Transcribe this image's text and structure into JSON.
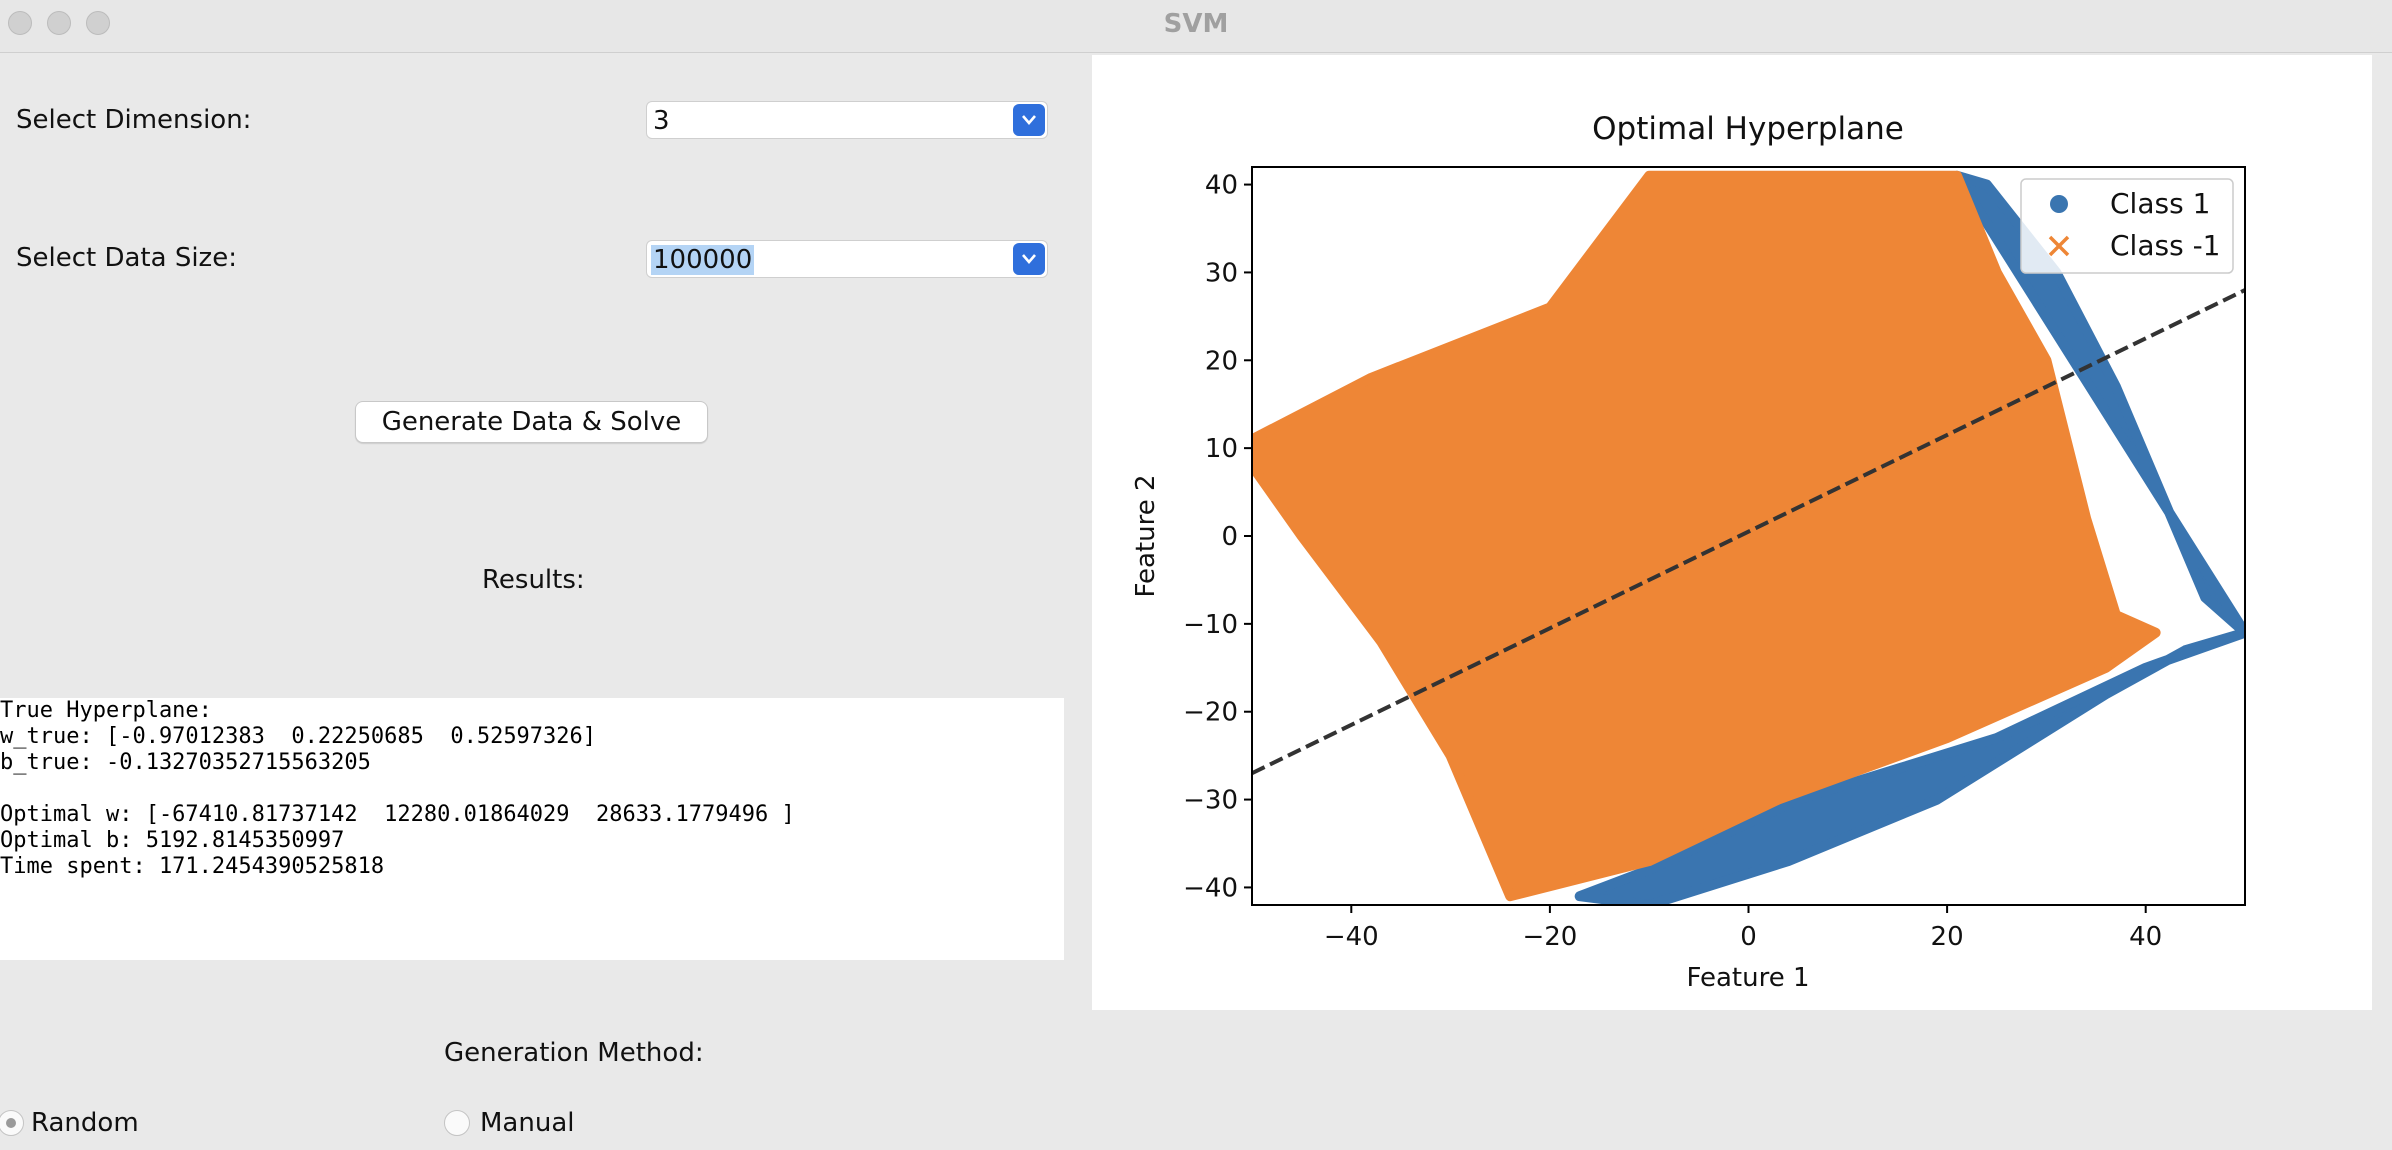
{
  "window": {
    "title": "SVM"
  },
  "controls": {
    "dimension_label": "Select Dimension:",
    "dimension_value": "3",
    "datasize_label": "Select Data Size:",
    "datasize_value": "100000",
    "generate_button": "Generate Data & Solve",
    "results_label": "Results:"
  },
  "results": {
    "lines": [
      "True Hyperplane:",
      "w_true: [-0.97012383  0.22250685  0.52597326]",
      "b_true: -0.13270352715563205",
      "",
      "Optimal w: [-67410.81737142  12280.01864029  28633.1779496 ]",
      "Optimal b: 5192.8145350997",
      "Time spent: 171.2454390525818"
    ]
  },
  "generation": {
    "label": "Generation Method:",
    "options": [
      "Random",
      "Manual"
    ],
    "selected": "Random"
  },
  "chart_data": {
    "type": "scatter",
    "title": "Optimal Hyperplane",
    "xlabel": "Feature 1",
    "ylabel": "Feature 2",
    "xlim": [
      -50,
      50
    ],
    "ylim": [
      -42,
      42
    ],
    "xticks": [
      -40,
      -20,
      0,
      20,
      40
    ],
    "yticks": [
      -40,
      -30,
      -20,
      -10,
      0,
      10,
      20,
      30,
      40
    ],
    "legend_position": "top-right",
    "series": [
      {
        "name": "Class 1",
        "marker": "circle",
        "color": "#3a75b0",
        "region": [
          [
            21,
            41
          ],
          [
            24,
            40
          ],
          [
            31,
            30
          ],
          [
            37,
            17
          ],
          [
            46,
            -7
          ],
          [
            50,
            -11
          ],
          [
            40,
            -15
          ],
          [
            25,
            -23
          ],
          [
            5,
            -30
          ],
          [
            -10,
            -38
          ],
          [
            -17,
            -41
          ],
          [
            -10,
            -42
          ],
          [
            4,
            -37
          ],
          [
            19,
            -30
          ],
          [
            36,
            -18
          ],
          [
            44,
            -13
          ],
          [
            50,
            -11
          ]
        ]
      },
      {
        "name": "Class -1",
        "marker": "x",
        "color": "#ee8636",
        "region": [
          [
            -50,
            11
          ],
          [
            -38,
            18
          ],
          [
            -20,
            26
          ],
          [
            -10,
            41
          ],
          [
            21,
            41
          ],
          [
            25,
            30
          ],
          [
            30,
            20
          ],
          [
            34,
            2
          ],
          [
            37,
            -9
          ],
          [
            41,
            -11
          ],
          [
            36,
            -15
          ],
          [
            20,
            -23
          ],
          [
            3,
            -30
          ],
          [
            -10,
            -37
          ],
          [
            -24,
            -41
          ],
          [
            -30,
            -25
          ],
          [
            -37,
            -12
          ],
          [
            -45,
            0
          ],
          [
            -50,
            8
          ]
        ]
      }
    ],
    "hyperplane": {
      "x": [
        -50,
        50
      ],
      "y": [
        -27,
        28
      ],
      "style": "dashed",
      "color": "#333333"
    }
  }
}
